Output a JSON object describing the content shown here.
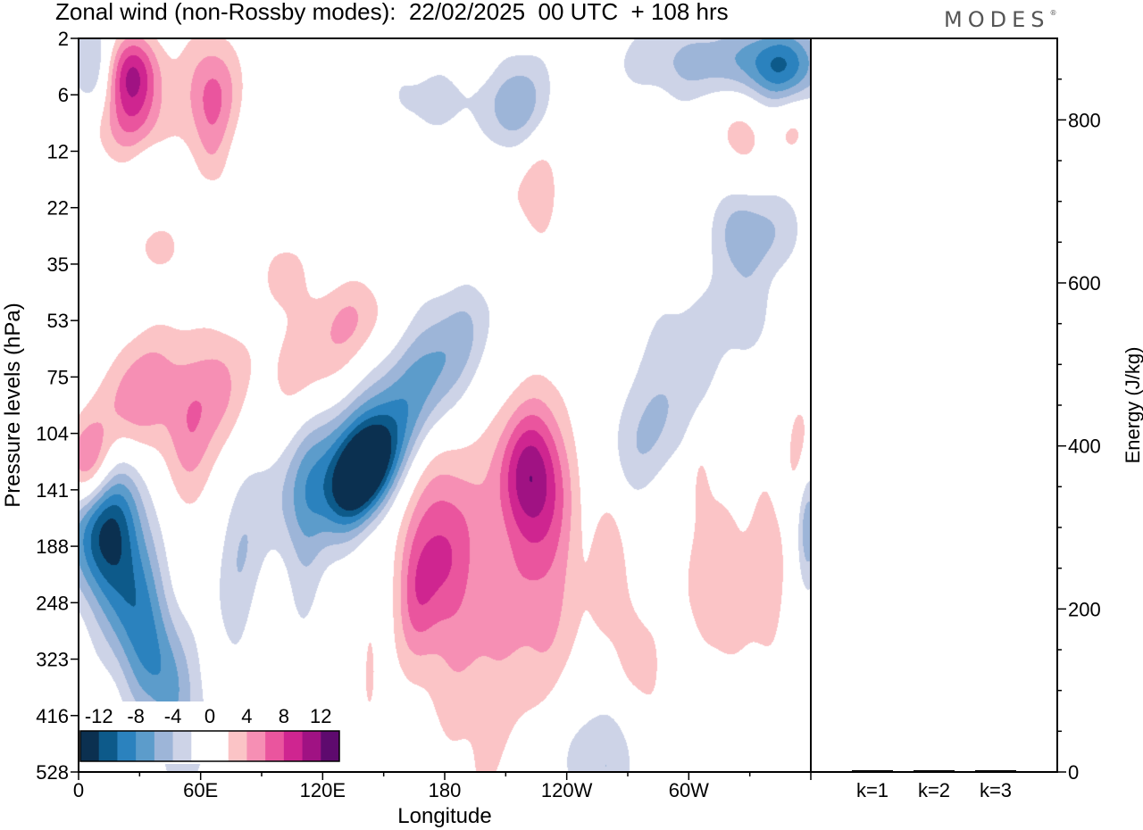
{
  "title": "Zonal wind (non-Rossby modes):  22/02/2025  00 UTC  + 108 hrs",
  "logo": "MODES",
  "chart_data": [
    {
      "type": "heatmap",
      "title": "Zonal wind (non-Rossby modes):  22/02/2025  00 UTC  + 108 hrs",
      "xlabel": "Longitude",
      "ylabel": "Pressure levels (hPa)",
      "x_ticks": [
        "0",
        "60E",
        "120E",
        "180",
        "120W",
        "60W"
      ],
      "x_tick_values": [
        0,
        60,
        120,
        180,
        240,
        300
      ],
      "xlim": [
        0,
        360
      ],
      "y_ticks": [
        "2",
        "6",
        "12",
        "22",
        "35",
        "53",
        "75",
        "104",
        "141",
        "188",
        "248",
        "323",
        "416",
        "528"
      ],
      "colorbar": {
        "labels": [
          "-12",
          "-8",
          "-4",
          "0",
          "4",
          "8",
          "12"
        ],
        "colors": [
          "#0b3050",
          "#0d5a8a",
          "#2b82be",
          "#5c9ccb",
          "#9db5d8",
          "#cdd3e7",
          "#ffffff",
          "#ffffff",
          "#fbc4c6",
          "#f68fb4",
          "#ea559e",
          "#cf2590",
          "#a01283",
          "#5e0a6e"
        ]
      },
      "blobs": [
        {
          "lon": 140,
          "lev": 7.7,
          "v": -14,
          "wl": 11,
          "wy": 0.55,
          "rot": -0.45
        },
        {
          "lon": 118,
          "lev": 7.8,
          "v": -6,
          "wl": 18,
          "wy": 0.9,
          "rot": -0.4
        },
        {
          "lon": 152,
          "lev": 6.6,
          "v": -6,
          "wl": 20,
          "wy": 0.9,
          "rot": -0.6
        },
        {
          "lon": 178,
          "lev": 5.8,
          "v": -3.5,
          "wl": 18,
          "wy": 0.9,
          "rot": -0.5
        },
        {
          "lon": 190,
          "lev": 5.2,
          "v": -1.5,
          "wl": 14,
          "wy": 0.7,
          "rot": -0.4
        },
        {
          "lon": 12,
          "lev": 8.5,
          "v": -12,
          "wl": 13,
          "wy": 1.0,
          "rot": 0
        },
        {
          "lon": 28,
          "lev": 10.3,
          "v": -7,
          "wl": 12,
          "wy": 1.1,
          "rot": 0.4
        },
        {
          "lon": 44,
          "lev": 11.5,
          "v": -4,
          "wl": 12,
          "wy": 1.1,
          "rot": 0.5
        },
        {
          "lon": 55,
          "lev": 12.5,
          "v": -2,
          "wl": 10,
          "wy": 1.0,
          "rot": 0.3
        },
        {
          "lon": 78,
          "lev": 9.3,
          "v": -3.5,
          "wl": 8,
          "wy": 1.3,
          "rot": -0.3
        },
        {
          "lon": 112,
          "lev": 9.5,
          "v": -2,
          "wl": 6,
          "wy": 1.6,
          "rot": 0
        },
        {
          "lon": 240,
          "lev": 12.8,
          "v": -2.5,
          "wl": 22,
          "wy": 0.9,
          "rot": 0.2
        },
        {
          "lon": 260,
          "lev": 12.6,
          "v": -2.5,
          "wl": 12,
          "wy": 0.9,
          "rot": 0
        },
        {
          "lon": 280,
          "lev": 7.0,
          "v": -4,
          "wl": 20,
          "wy": 0.8,
          "rot": -0.5
        },
        {
          "lon": 302,
          "lev": 5.2,
          "v": -2.5,
          "wl": 22,
          "wy": 0.8,
          "rot": -0.3
        },
        {
          "lon": 325,
          "lev": 3.4,
          "v": -5.5,
          "wl": 9,
          "wy": 0.6,
          "rot": 0
        },
        {
          "lon": 345,
          "lev": 3.4,
          "v": -3,
          "wl": 9,
          "wy": 0.6,
          "rot": 0
        },
        {
          "lon": 310,
          "lev": 0.4,
          "v": -5,
          "wl": 30,
          "wy": 0.5,
          "rot": 0
        },
        {
          "lon": 345,
          "lev": 0.5,
          "v": -8,
          "wl": 14,
          "wy": 0.5,
          "rot": 0
        },
        {
          "lon": 358,
          "lev": 8.5,
          "v": -7,
          "wl": 4,
          "wy": 0.8,
          "rot": 0
        },
        {
          "lon": 8,
          "lev": 0.5,
          "v": -6,
          "wl": 8,
          "wy": 0.6,
          "rot": 0
        },
        {
          "lon": 217,
          "lev": 1.3,
          "v": -4.5,
          "wl": 10,
          "wy": 0.7,
          "rot": 0
        },
        {
          "lon": 205,
          "lev": 1.1,
          "v": -2,
          "wl": 22,
          "wy": 0.6,
          "rot": 0
        },
        {
          "lon": 165,
          "lev": 1.0,
          "v": -2,
          "wl": 18,
          "wy": 0.6,
          "rot": 0
        },
        {
          "lon": 125,
          "lev": 0.8,
          "v": -1.5,
          "wl": 8,
          "wy": 0.6,
          "rot": 0
        },
        {
          "lon": 210,
          "lev": 3.9,
          "v": -2,
          "wl": 6,
          "wy": 0.7,
          "rot": 0
        },
        {
          "lon": 65,
          "lev": 3.1,
          "v": -1.5,
          "wl": 4,
          "wy": 0.5,
          "rot": 0
        },
        {
          "lon": 10,
          "lev": 4.9,
          "v": -1.5,
          "wl": 6,
          "wy": 0.7,
          "rot": 0
        },
        {
          "lon": 245,
          "lev": 3.9,
          "v": -1.5,
          "wl": 5,
          "wy": 0.6,
          "rot": 0
        },
        {
          "lon": 168,
          "lev": 13.0,
          "v": -1.8,
          "wl": 6,
          "wy": 0.7,
          "rot": 0
        },
        {
          "lon": 330,
          "lev": 4.9,
          "v": -2,
          "wl": 8,
          "wy": 0.5,
          "rot": 0
        },
        {
          "lon": 35,
          "lev": 2.5,
          "v": -2,
          "wl": 6,
          "wy": 0.4,
          "rot": 0
        },
        {
          "lon": 5,
          "lev": 7.6,
          "v": 10,
          "wl": 9,
          "wy": 0.6,
          "rot": 0
        },
        {
          "lon": 28,
          "lev": 6.4,
          "v": 6,
          "wl": 16,
          "wy": 0.8,
          "rot": -0.3
        },
        {
          "lon": 55,
          "lev": 7.0,
          "v": 4.5,
          "wl": 9,
          "wy": 1.0,
          "rot": 0
        },
        {
          "lon": 70,
          "lev": 6.2,
          "v": 3.5,
          "wl": 8,
          "wy": 0.8,
          "rot": 0
        },
        {
          "lon": 120,
          "lev": 5.8,
          "v": 3.5,
          "wl": 26,
          "wy": 0.8,
          "rot": -0.2
        },
        {
          "lon": 135,
          "lev": 4.9,
          "v": 2.5,
          "wl": 14,
          "wy": 0.5,
          "rot": 0
        },
        {
          "lon": 100,
          "lev": 4.1,
          "v": 2.5,
          "wl": 9,
          "wy": 0.5,
          "rot": 0
        },
        {
          "lon": 205,
          "lev": 10.4,
          "v": 4,
          "wl": 26,
          "wy": 2.5,
          "rot": 0
        },
        {
          "lon": 230,
          "lev": 8.8,
          "v": 3.5,
          "wl": 12,
          "wy": 1.6,
          "rot": 0
        },
        {
          "lon": 222,
          "lev": 7.7,
          "v": 8,
          "wl": 11,
          "wy": 0.8,
          "rot": 0
        },
        {
          "lon": 178,
          "lev": 9.0,
          "v": 6,
          "wl": 11,
          "wy": 1.2,
          "rot": 0
        },
        {
          "lon": 165,
          "lev": 9.8,
          "v": 4,
          "wl": 7,
          "wy": 0.9,
          "rot": 0
        },
        {
          "lon": 260,
          "lev": 9.0,
          "v": 3,
          "wl": 6,
          "wy": 1.2,
          "rot": 0
        },
        {
          "lon": 270,
          "lev": 10.8,
          "v": 2.5,
          "wl": 6,
          "wy": 1.0,
          "rot": 0
        },
        {
          "lon": 315,
          "lev": 9.6,
          "v": 3,
          "wl": 16,
          "wy": 1.4,
          "rot": 0
        },
        {
          "lon": 340,
          "lev": 9.5,
          "v": 2.5,
          "wl": 6,
          "wy": 1.4,
          "rot": 0
        },
        {
          "lon": 355,
          "lev": 7.5,
          "v": 4,
          "wl": 5,
          "wy": 0.8,
          "rot": 0
        },
        {
          "lon": 282,
          "lev": 11.5,
          "v": 2,
          "wl": 6,
          "wy": 0.8,
          "rot": 0
        },
        {
          "lon": 25,
          "lev": 0.6,
          "v": 10,
          "wl": 10,
          "wy": 0.5,
          "rot": 0
        },
        {
          "lon": 65,
          "lev": 0.9,
          "v": 6,
          "wl": 10,
          "wy": 0.7,
          "rot": 0
        },
        {
          "lon": 25,
          "lev": 1.5,
          "v": 5,
          "wl": 14,
          "wy": 0.5,
          "rot": 0
        },
        {
          "lon": 65,
          "lev": 2.2,
          "v": 2.5,
          "wl": 6,
          "wy": 0.8,
          "rot": 0
        },
        {
          "lon": 205,
          "lev": 3.3,
          "v": 2.5,
          "wl": 8,
          "wy": 0.9,
          "rot": 0
        },
        {
          "lon": 225,
          "lev": 2.5,
          "v": 4,
          "wl": 8,
          "wy": 0.8,
          "rot": 0
        },
        {
          "lon": 325,
          "lev": 1.6,
          "v": 3,
          "wl": 10,
          "wy": 0.8,
          "rot": 0
        },
        {
          "lon": 350,
          "lev": 1.5,
          "v": 2.5,
          "wl": 8,
          "wy": 0.5,
          "rot": 0
        },
        {
          "lon": 40,
          "lev": 3.7,
          "v": 3,
          "wl": 8,
          "wy": 0.3,
          "rot": 0
        },
        {
          "lon": 55,
          "lev": 12.6,
          "v": 2,
          "wl": 6,
          "wy": 0.6,
          "rot": 0
        },
        {
          "lon": 35,
          "lev": 12.5,
          "v": 2,
          "wl": 5,
          "wy": 0.6,
          "rot": 0
        },
        {
          "lon": 143,
          "lev": 11.2,
          "v": 2,
          "wl": 3,
          "wy": 1.0,
          "rot": 0
        },
        {
          "lon": 355,
          "lev": 12.0,
          "v": 2,
          "wl": 2,
          "wy": 0.6,
          "rot": 0
        },
        {
          "lon": 193,
          "lev": 0.4,
          "v": 2,
          "wl": 8,
          "wy": 0.3,
          "rot": 0
        },
        {
          "lon": 305,
          "lev": 7.6,
          "v": 2,
          "wl": 4,
          "wy": 0.6,
          "rot": 0
        }
      ]
    },
    {
      "type": "bar",
      "ylabel": "Energy (J/kg)",
      "categories": [
        "k=1",
        "k=2",
        "k=3"
      ],
      "values": [
        1,
        1,
        1
      ],
      "ylim": [
        0,
        900
      ],
      "y_ticks": [
        "0",
        "200",
        "400",
        "600",
        "800"
      ],
      "y_tick_values": [
        0,
        200,
        400,
        600,
        800
      ]
    }
  ]
}
